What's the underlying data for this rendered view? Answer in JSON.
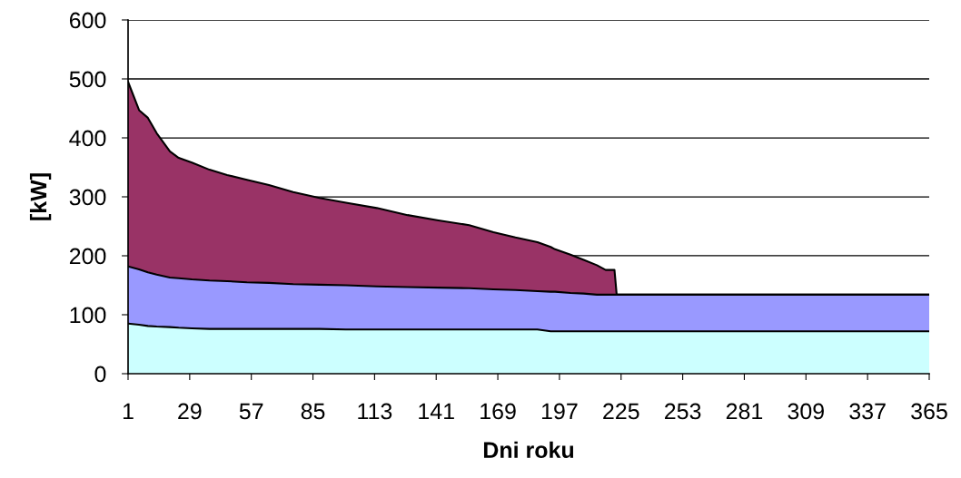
{
  "chart_data": {
    "type": "area",
    "stacked": true,
    "xlabel": "Dni roku",
    "ylabel": "[kW]",
    "x": [
      1,
      6,
      10,
      14,
      20,
      24,
      30,
      38,
      46,
      55,
      65,
      76,
      88,
      100,
      114,
      128,
      142,
      156,
      167,
      177,
      187,
      193,
      195,
      202,
      208,
      214,
      218,
      222,
      223,
      365
    ],
    "series": [
      {
        "color": "#ccffff",
        "values": [
          85,
          83,
          81,
          80,
          79,
          78,
          77,
          76,
          76,
          76,
          76,
          76,
          76,
          75,
          75,
          75,
          75,
          75,
          75,
          75,
          75,
          72,
          72,
          72,
          72,
          72,
          72,
          72,
          72,
          72
        ]
      },
      {
        "color": "#9999ff",
        "values": [
          97,
          94,
          91,
          88,
          84,
          84,
          83,
          82,
          81,
          79,
          78,
          76,
          75,
          75,
          73,
          72,
          71,
          70,
          68,
          67,
          65,
          67,
          67,
          65,
          64,
          62,
          62,
          62,
          62,
          62
        ]
      },
      {
        "color": "#993366",
        "values": [
          313,
          270,
          262,
          240,
          214,
          204,
          198,
          188,
          180,
          174,
          166,
          156,
          147,
          140,
          133,
          122,
          114,
          107,
          97,
          89,
          83,
          76,
          72,
          65,
          57,
          50,
          42,
          42,
          0,
          0
        ]
      }
    ],
    "xlim": [
      1,
      365
    ],
    "xticks": [
      1,
      29,
      57,
      85,
      113,
      141,
      169,
      197,
      225,
      253,
      281,
      309,
      337,
      365
    ],
    "ylim": [
      0,
      600
    ],
    "yticks": [
      0,
      100,
      200,
      300,
      400,
      500,
      600
    ],
    "grid": "y",
    "legend": false
  }
}
